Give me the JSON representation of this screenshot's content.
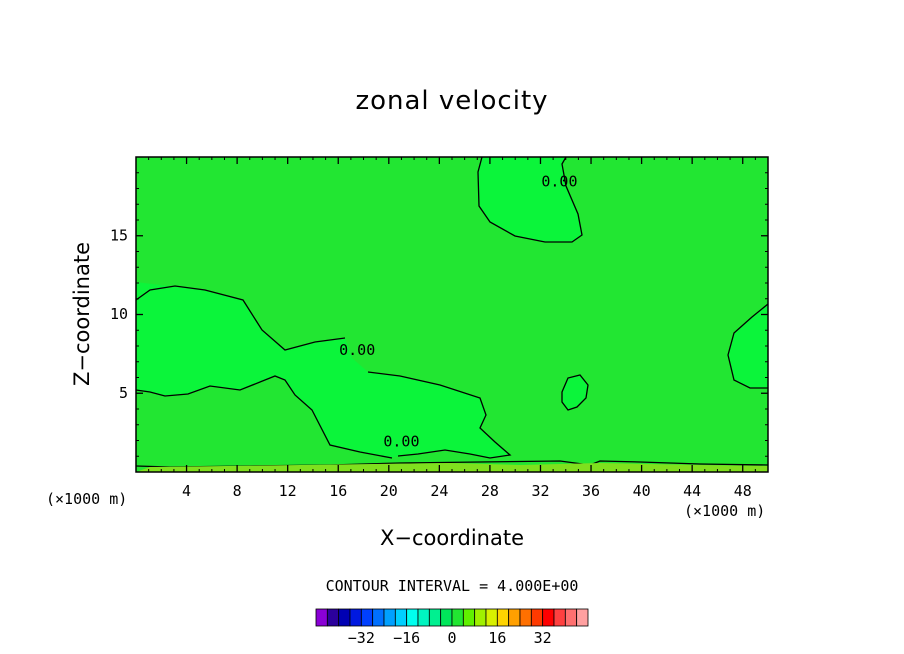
{
  "chart_data": {
    "type": "contour",
    "title": "zonal velocity",
    "xlabel": "X−coordinate",
    "ylabel": "Z−coordinate",
    "x_unit": "(×1000 m)",
    "x_ticks": [
      4,
      8,
      12,
      16,
      20,
      24,
      28,
      32,
      36,
      40,
      44,
      48
    ],
    "x_range": [
      0,
      50
    ],
    "y_ticks": [
      5,
      10,
      15
    ],
    "y_range": [
      0,
      20
    ],
    "contour_interval_label": "CONTOUR INTERVAL = 4.000E+00",
    "contour_labels": [
      {
        "text": "0.00",
        "x": 33.5,
        "y": 18.4
      },
      {
        "text": "0.00",
        "x": 17.5,
        "y": 7.7
      },
      {
        "text": "0.00",
        "x": 21.0,
        "y": 1.9
      }
    ],
    "fill_colors": {
      "background": "#22e632",
      "positive_region": "#0bf53a"
    },
    "colorbar": {
      "colors": [
        "#8a00d6",
        "#2b009c",
        "#0000b3",
        "#0019e0",
        "#0040ff",
        "#0070ff",
        "#00a0ff",
        "#00cfff",
        "#00ffef",
        "#00f5c0",
        "#00f090",
        "#00e65a",
        "#22e632",
        "#60f000",
        "#a0f000",
        "#d8f000",
        "#ffd400",
        "#ffa000",
        "#ff7000",
        "#ff3a00",
        "#ff0000",
        "#ff4040",
        "#ff7070",
        "#ffa0a0"
      ],
      "tick_labels": [
        {
          "value": -32,
          "text": "−32"
        },
        {
          "value": -16,
          "text": "−16"
        },
        {
          "value": 0,
          "text": "0"
        },
        {
          "value": 16,
          "text": "16"
        },
        {
          "value": 32,
          "text": "32"
        }
      ],
      "range": [
        -48,
        48
      ]
    }
  }
}
